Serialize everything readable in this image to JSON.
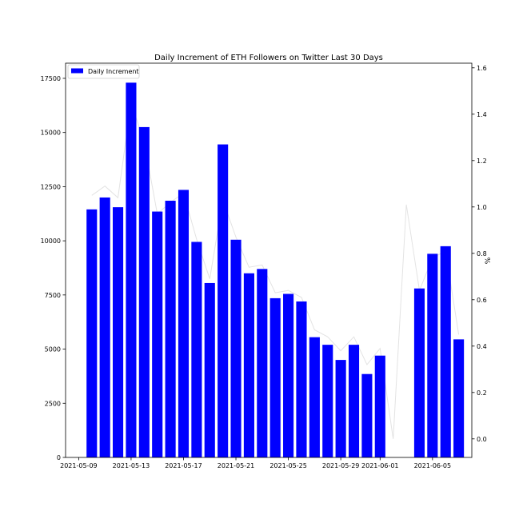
{
  "chart_data": {
    "type": "bar",
    "title": "Daily Increment of ETH Followers on Twitter Last 30 Days",
    "legend": {
      "label": "Daily Increment",
      "placement": "upper-left"
    },
    "x_tick_labels": [
      "2021-05-09",
      "2021-05-13",
      "2021-05-17",
      "2021-05-21",
      "2021-05-25",
      "2021-05-29",
      "2021-06-01",
      "2021-06-05"
    ],
    "y_tick_labels": [
      "0",
      "2500",
      "5000",
      "7500",
      "10000",
      "12500",
      "15000",
      "17500"
    ],
    "y2_tick_labels": [
      "0.0",
      "0.2",
      "0.4",
      "0.6",
      "0.8",
      "1.0",
      "1.2",
      "1.4",
      "1.6"
    ],
    "ylabel": "",
    "y2label": "%",
    "ylim": [
      0,
      18200
    ],
    "y2lim": [
      -0.08,
      1.62
    ],
    "x_start": "2021-05-08",
    "x_end": "2021-06-08",
    "series": [
      {
        "name": "Daily Increment",
        "color": "#0000ff",
        "dates": [
          "2021-05-10",
          "2021-05-11",
          "2021-05-12",
          "2021-05-13",
          "2021-05-14",
          "2021-05-15",
          "2021-05-16",
          "2021-05-17",
          "2021-05-18",
          "2021-05-19",
          "2021-05-20",
          "2021-05-21",
          "2021-05-22",
          "2021-05-23",
          "2021-05-24",
          "2021-05-25",
          "2021-05-26",
          "2021-05-27",
          "2021-05-28",
          "2021-05-29",
          "2021-05-30",
          "2021-05-31",
          "2021-06-01",
          "2021-06-04",
          "2021-06-05",
          "2021-06-06",
          "2021-06-07"
        ],
        "values": [
          11450,
          12000,
          11550,
          17300,
          15250,
          11350,
          11850,
          12350,
          9950,
          8050,
          14450,
          10050,
          8500,
          8700,
          7350,
          7550,
          7200,
          5550,
          5200,
          4500,
          5200,
          3850,
          4700,
          7800,
          9400,
          9750,
          5450
        ]
      },
      {
        "name": "",
        "axis": "right",
        "color": "#e3e3e3",
        "dates": [
          "2021-05-10",
          "2021-05-11",
          "2021-05-12",
          "2021-05-13",
          "2021-05-14",
          "2021-05-15",
          "2021-05-16",
          "2021-05-17",
          "2021-05-18",
          "2021-05-19",
          "2021-05-20",
          "2021-05-21",
          "2021-05-22",
          "2021-05-23",
          "2021-05-24",
          "2021-05-25",
          "2021-05-26",
          "2021-05-27",
          "2021-05-28",
          "2021-05-29",
          "2021-05-30",
          "2021-05-31",
          "2021-06-01",
          "2021-06-02",
          "2021-06-03",
          "2021-06-04",
          "2021-06-05",
          "2021-06-06",
          "2021-06-07"
        ],
        "values": [
          1.05,
          1.09,
          1.04,
          1.45,
          1.28,
          0.97,
          1.02,
          1.06,
          0.86,
          0.69,
          1.03,
          0.87,
          0.74,
          0.75,
          0.63,
          0.64,
          0.61,
          0.47,
          0.44,
          0.38,
          0.44,
          0.32,
          0.39,
          0.0,
          1.01,
          0.64,
          0.78,
          0.81,
          0.45
        ]
      }
    ]
  }
}
